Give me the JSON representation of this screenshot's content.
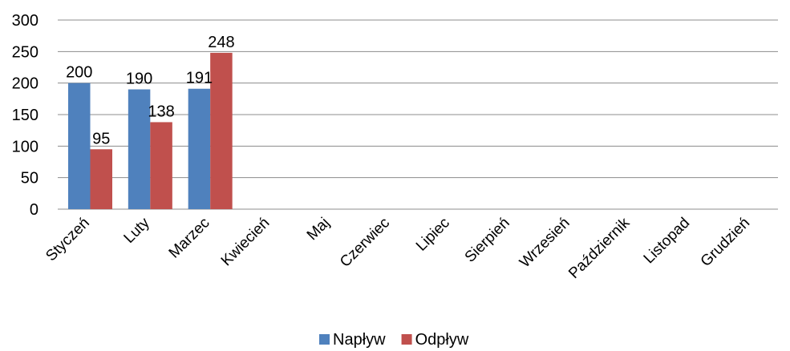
{
  "chart_data": {
    "type": "bar",
    "title": "",
    "xlabel": "",
    "ylabel": "",
    "ylim": [
      0,
      300
    ],
    "yticks": [
      0,
      50,
      100,
      150,
      200,
      250,
      300
    ],
    "grid": true,
    "legend_position": "bottom",
    "categories": [
      "Styczeń",
      "Luty",
      "Marzec",
      "Kwiecień",
      "Maj",
      "Czerwiec",
      "Lipiec",
      "Sierpień",
      "Wrzesień",
      "Październik",
      "Listopad",
      "Grudzień"
    ],
    "series": [
      {
        "name": "Napływ",
        "color": "#4f81bd",
        "values": [
          200,
          190,
          191,
          null,
          null,
          null,
          null,
          null,
          null,
          null,
          null,
          null
        ]
      },
      {
        "name": "Odpływ",
        "color": "#c0504d",
        "values": [
          95,
          138,
          248,
          null,
          null,
          null,
          null,
          null,
          null,
          null,
          null,
          null
        ]
      }
    ]
  }
}
